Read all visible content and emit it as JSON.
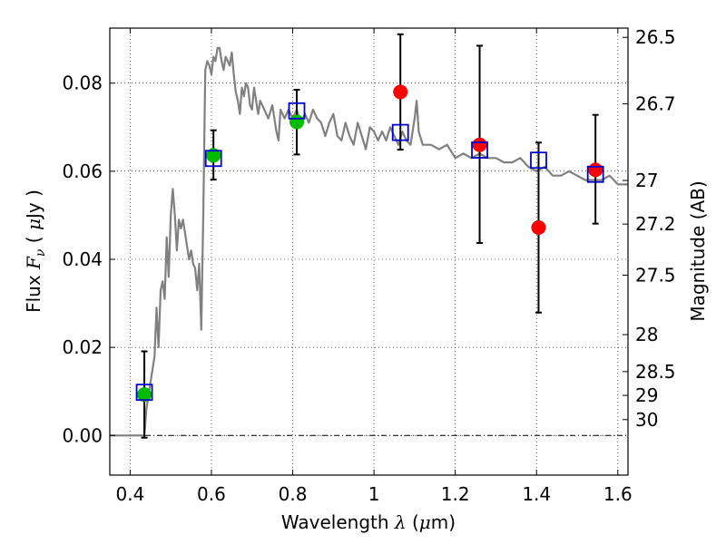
{
  "chart_data": {
    "type": "scatter",
    "xlabel": "Wavelength",
    "xlabel_symbol": "λ",
    "xlabel_unit_open": " (",
    "xlabel_unit_mu": "μ",
    "xlabel_unit_close": "m)",
    "ylabel": "Flux",
    "ylabel_symbol": "F",
    "ylabel_subscript": "ν",
    "ylabel_unit_open": " ( ",
    "ylabel_unit_mu": "μ",
    "ylabel_unit_close": "Jy )",
    "y2label": "Magnitude (AB)",
    "xlim": [
      0.35,
      1.625
    ],
    "ylim": [
      -0.009,
      0.0925
    ],
    "grid": true,
    "x_ticks": [
      {
        "value": 0.4,
        "label": "0.4"
      },
      {
        "value": 0.6,
        "label": "0.6"
      },
      {
        "value": 0.8,
        "label": "0.8"
      },
      {
        "value": 1.0,
        "label": "1"
      },
      {
        "value": 1.2,
        "label": "1.2"
      },
      {
        "value": 1.4,
        "label": "1.4"
      },
      {
        "value": 1.6,
        "label": "1.6"
      }
    ],
    "y_ticks": [
      {
        "value": 0.0,
        "label": "0.00"
      },
      {
        "value": 0.02,
        "label": "0.02"
      },
      {
        "value": 0.04,
        "label": "0.04"
      },
      {
        "value": 0.06,
        "label": "0.06"
      },
      {
        "value": 0.08,
        "label": "0.08"
      }
    ],
    "y2_ticks": [
      {
        "flux": 0.0904,
        "label": "26.5"
      },
      {
        "flux": 0.0753,
        "label": "26.7"
      },
      {
        "flux": 0.0579,
        "label": "27"
      },
      {
        "flux": 0.048,
        "label": "27.2"
      },
      {
        "flux": 0.0364,
        "label": "27.5"
      },
      {
        "flux": 0.0229,
        "label": "28"
      },
      {
        "flux": 0.0145,
        "label": "28.5"
      },
      {
        "flux": 0.0091,
        "label": "29"
      },
      {
        "flux": 0.0036,
        "label": "30"
      }
    ],
    "series": [
      {
        "style": "line",
        "color": "#808080",
        "x": [
          0.35,
          0.43,
          0.435,
          0.44,
          0.45,
          0.46,
          0.465,
          0.47,
          0.475,
          0.48,
          0.485,
          0.49,
          0.495,
          0.5,
          0.505,
          0.51,
          0.515,
          0.52,
          0.525,
          0.53,
          0.535,
          0.54,
          0.545,
          0.55,
          0.555,
          0.56,
          0.565,
          0.57,
          0.575,
          0.58,
          0.585,
          0.59,
          0.595,
          0.6,
          0.605,
          0.61,
          0.615,
          0.62,
          0.625,
          0.63,
          0.635,
          0.64,
          0.645,
          0.65,
          0.655,
          0.66,
          0.665,
          0.67,
          0.675,
          0.68,
          0.685,
          0.69,
          0.695,
          0.7,
          0.705,
          0.71,
          0.715,
          0.72,
          0.73,
          0.74,
          0.75,
          0.76,
          0.765,
          0.77,
          0.775,
          0.78,
          0.79,
          0.8,
          0.81,
          0.82,
          0.83,
          0.84,
          0.85,
          0.86,
          0.87,
          0.88,
          0.89,
          0.9,
          0.91,
          0.92,
          0.93,
          0.94,
          0.95,
          0.96,
          0.97,
          0.98,
          0.99,
          1.0,
          1.01,
          1.02,
          1.03,
          1.04,
          1.05,
          1.06,
          1.07,
          1.08,
          1.09,
          1.1,
          1.105,
          1.11,
          1.12,
          1.14,
          1.16,
          1.18,
          1.2,
          1.22,
          1.24,
          1.26,
          1.28,
          1.3,
          1.32,
          1.34,
          1.36,
          1.38,
          1.4,
          1.42,
          1.44,
          1.46,
          1.48,
          1.5,
          1.52,
          1.54,
          1.56,
          1.58,
          1.6,
          1.625
        ],
        "y": [
          0.0,
          0.0,
          0.0,
          0.006,
          0.012,
          0.018,
          0.029,
          0.02,
          0.033,
          0.035,
          0.031,
          0.045,
          0.036,
          0.05,
          0.056,
          0.05,
          0.042,
          0.049,
          0.047,
          0.049,
          0.046,
          0.043,
          0.04,
          0.042,
          0.039,
          0.038,
          0.033,
          0.039,
          0.024,
          0.05,
          0.083,
          0.085,
          0.084,
          0.082,
          0.086,
          0.085,
          0.088,
          0.088,
          0.085,
          0.083,
          0.086,
          0.085,
          0.084,
          0.087,
          0.082,
          0.078,
          0.076,
          0.073,
          0.079,
          0.077,
          0.08,
          0.079,
          0.075,
          0.074,
          0.079,
          0.076,
          0.073,
          0.076,
          0.074,
          0.072,
          0.075,
          0.069,
          0.067,
          0.074,
          0.073,
          0.072,
          0.074,
          0.072,
          0.074,
          0.071,
          0.073,
          0.071,
          0.074,
          0.072,
          0.071,
          0.068,
          0.071,
          0.073,
          0.068,
          0.067,
          0.071,
          0.068,
          0.066,
          0.071,
          0.068,
          0.065,
          0.07,
          0.069,
          0.067,
          0.069,
          0.067,
          0.07,
          0.068,
          0.066,
          0.069,
          0.067,
          0.066,
          0.072,
          0.076,
          0.069,
          0.066,
          0.066,
          0.065,
          0.066,
          0.063,
          0.064,
          0.063,
          0.064,
          0.063,
          0.063,
          0.062,
          0.062,
          0.063,
          0.061,
          0.06,
          0.061,
          0.059,
          0.059,
          0.06,
          0.059,
          0.058,
          0.058,
          0.058,
          0.059,
          0.057,
          0.057
        ]
      },
      {
        "style": "markers",
        "marker": "circle",
        "color": "#00bb00",
        "x": [
          0.435,
          0.605,
          0.81
        ],
        "y": [
          0.0093,
          0.0636,
          0.0712
        ]
      },
      {
        "style": "markers",
        "marker": "circle",
        "color": "#ff0000",
        "x": [
          1.065,
          1.26,
          1.405,
          1.545
        ],
        "y": [
          0.078,
          0.066,
          0.0472,
          0.0603
        ]
      },
      {
        "style": "markers",
        "marker": "open-square",
        "color": "#0000cc",
        "x": [
          0.435,
          0.605,
          0.81,
          1.065,
          1.26,
          1.405,
          1.545
        ],
        "y": [
          0.0098,
          0.0629,
          0.0737,
          0.0688,
          0.0648,
          0.0625,
          0.0593
        ]
      },
      {
        "style": "errorbars",
        "color": "#000000",
        "x": [
          0.435,
          0.605,
          0.81,
          1.065,
          1.26,
          1.405,
          1.545
        ],
        "y": [
          0.0093,
          0.0636,
          0.0712,
          0.078,
          0.066,
          0.0472,
          0.0603
        ],
        "ylow": [
          -0.0005,
          0.0581,
          0.0638,
          0.0649,
          0.0437,
          0.0279,
          0.0481
        ],
        "yhigh": [
          0.0191,
          0.0693,
          0.0785,
          0.0911,
          0.0885,
          0.0665,
          0.0728
        ]
      }
    ]
  }
}
